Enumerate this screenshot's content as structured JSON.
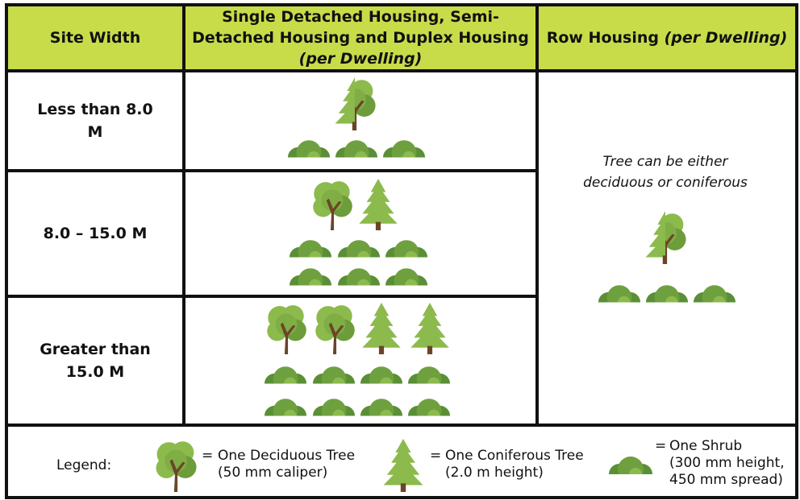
{
  "header": {
    "site_width": "Site Width",
    "single": {
      "title": "Single Detached Housing, Semi-Detached Housing and Duplex Housing",
      "qualifier": "(per Dwelling)"
    },
    "row": {
      "title": "Row Housing",
      "qualifier": "(per Dwelling)"
    }
  },
  "rows": [
    {
      "site_width": "Less than 8.0 M"
    },
    {
      "site_width": "8.0 – 15.0 M"
    },
    {
      "site_width": "Greater than 15.0 M"
    }
  ],
  "row_housing_note": "Tree can be either deciduous or coniferous",
  "legend": {
    "label": "Legend:",
    "equals": "=",
    "items": [
      {
        "text": "One Deciduous Tree",
        "detail": "(50 mm caliper)"
      },
      {
        "text": "One Coniferous Tree",
        "detail": "(2.0 m height)"
      },
      {
        "text": "One Shrub",
        "detail": "(300 mm height, 450 mm spread)"
      }
    ]
  }
}
